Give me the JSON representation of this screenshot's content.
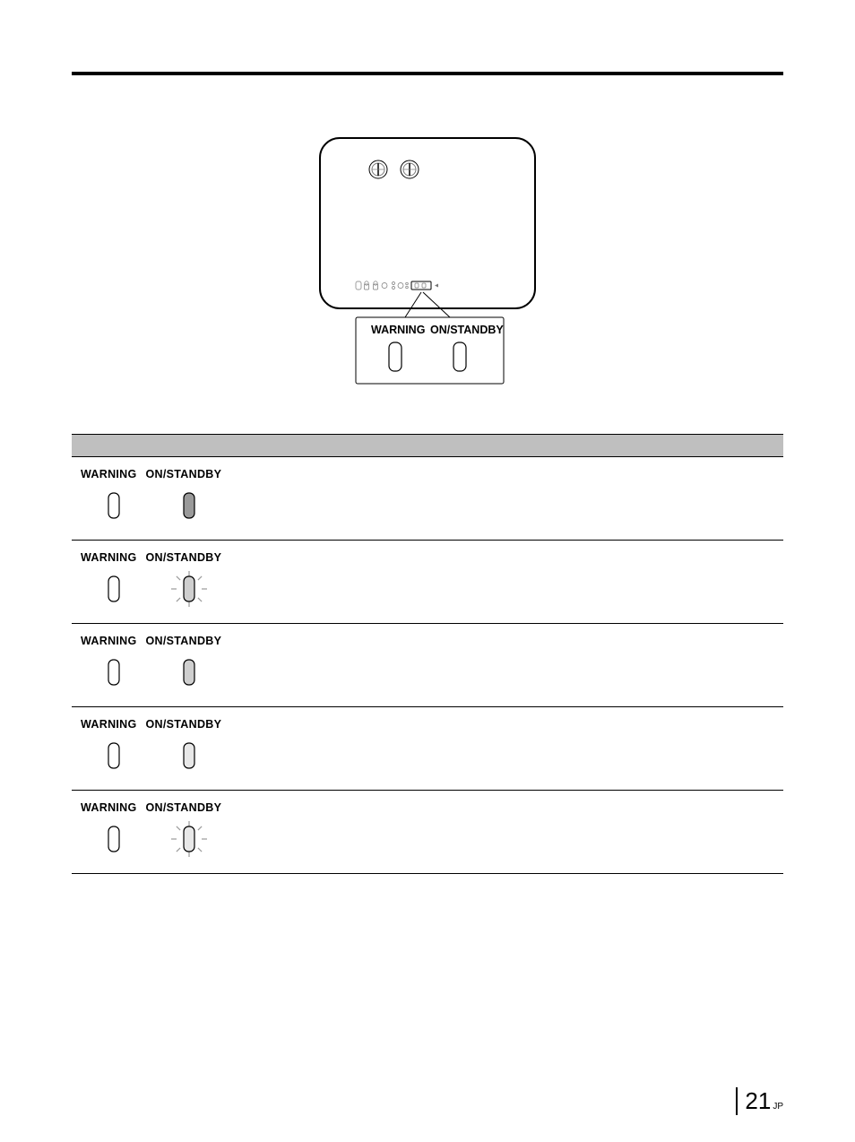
{
  "page": {
    "number": "21",
    "superscript": "JP"
  },
  "diagram": {
    "callout": {
      "label_left": "WARNING",
      "label_right": "ON/STANDBY"
    }
  },
  "rows": [
    {
      "warn_fill": "#ffffff",
      "stby_fill": "#9a9a9a",
      "rays": false
    },
    {
      "warn_fill": "#ffffff",
      "stby_fill": "#cfcfcf",
      "rays": true
    },
    {
      "warn_fill": "#ffffff",
      "stby_fill": "#cfcfcf",
      "rays": false
    },
    {
      "warn_fill": "#ffffff",
      "stby_fill": "#e8e8e8",
      "rays": false
    },
    {
      "warn_fill": "#ffffff",
      "stby_fill": "#e8e8e8",
      "rays": true
    }
  ],
  "labels": {
    "warning": "WARNING",
    "standby": "ON/STANDBY"
  },
  "colors": {
    "rule": "#000000",
    "header_bg": "#bfbfbf",
    "ray": "#9a9a9a",
    "stroke": "#000000"
  }
}
